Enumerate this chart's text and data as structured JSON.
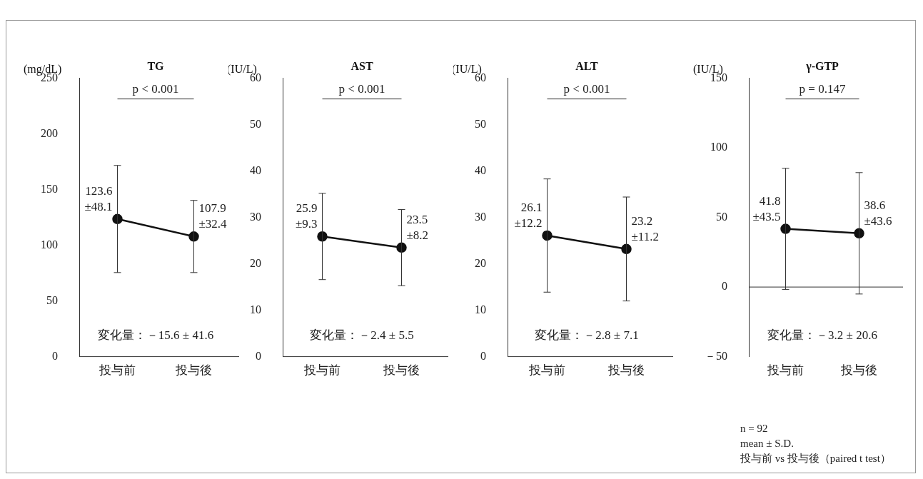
{
  "chart_data": [
    {
      "type": "line",
      "title": "TG",
      "ylabel": "(mg/dL)",
      "categories": [
        "投与前",
        "投与後"
      ],
      "ylim": [
        0,
        250
      ],
      "yticks": [
        0,
        50,
        100,
        150,
        200,
        250
      ],
      "grid": false,
      "legend": false,
      "marker": "circle",
      "line_style": "solid",
      "series": [
        {
          "color": "#111111",
          "values": [
            123.6,
            107.9
          ],
          "errors": [
            48.1,
            32.4
          ],
          "value_labels": [
            "123.6\n±48.1",
            "107.9\n±32.4"
          ]
        }
      ],
      "annotations": [
        "p < 0.001",
        "変化量：－15.6 ± 41.6"
      ]
    },
    {
      "type": "line",
      "title": "AST",
      "ylabel": "(IU/L)",
      "categories": [
        "投与前",
        "投与後"
      ],
      "ylim": [
        0,
        60
      ],
      "yticks": [
        0,
        10,
        20,
        30,
        40,
        50,
        60
      ],
      "grid": false,
      "legend": false,
      "marker": "circle",
      "line_style": "solid",
      "series": [
        {
          "color": "#111111",
          "values": [
            25.9,
            23.5
          ],
          "errors": [
            9.3,
            8.2
          ],
          "value_labels": [
            "25.9\n±9.3",
            "23.5\n±8.2"
          ]
        }
      ],
      "annotations": [
        "p < 0.001",
        "変化量：－2.4 ± 5.5"
      ]
    },
    {
      "type": "line",
      "title": "ALT",
      "ylabel": "(IU/L)",
      "categories": [
        "投与前",
        "投与後"
      ],
      "ylim": [
        0,
        60
      ],
      "yticks": [
        0,
        10,
        20,
        30,
        40,
        50,
        60
      ],
      "grid": false,
      "legend": false,
      "marker": "circle",
      "line_style": "solid",
      "series": [
        {
          "color": "#111111",
          "values": [
            26.1,
            23.2
          ],
          "errors": [
            12.2,
            11.2
          ],
          "value_labels": [
            "26.1\n±12.2",
            "23.2\n±11.2"
          ]
        }
      ],
      "annotations": [
        "p < 0.001",
        "変化量：－2.8 ± 7.1"
      ]
    },
    {
      "type": "line",
      "title": "γ-GTP",
      "ylabel": "(IU/L)",
      "categories": [
        "投与前",
        "投与後"
      ],
      "ylim": [
        -50,
        150
      ],
      "yticks": [
        {
          "value": -50,
          "label": "－50"
        },
        0,
        50,
        100,
        150
      ],
      "ref_lines": [
        {
          "axis": "y",
          "value": 0
        }
      ],
      "grid": false,
      "legend": false,
      "marker": "circle",
      "line_style": "solid",
      "series": [
        {
          "color": "#111111",
          "values": [
            41.8,
            38.6
          ],
          "errors": [
            43.5,
            43.6
          ],
          "value_labels": [
            "41.8\n±43.5",
            "38.6\n±43.6"
          ]
        }
      ],
      "annotations": [
        "p = 0.147",
        "変化量：－3.2 ± 20.6",
        "n = 92",
        "mean ± S.D.",
        "投与前 vs 投与後（paired t test）"
      ]
    }
  ]
}
